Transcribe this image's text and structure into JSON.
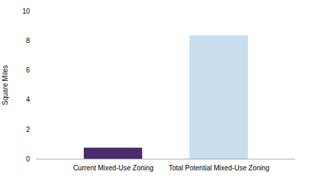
{
  "chart_data": {
    "type": "bar",
    "categories": [
      "Current Mixed-Use Zoning",
      "Total Potential Mixed-Use Zoning"
    ],
    "values": [
      0.75,
      8.35
    ],
    "colors": [
      "#4b2d6e",
      "#c8dff0"
    ],
    "ylabel": "Square Miles",
    "ylim": [
      0,
      10
    ],
    "yticks": [
      0,
      2,
      4,
      6,
      8,
      10
    ],
    "grid": false
  }
}
